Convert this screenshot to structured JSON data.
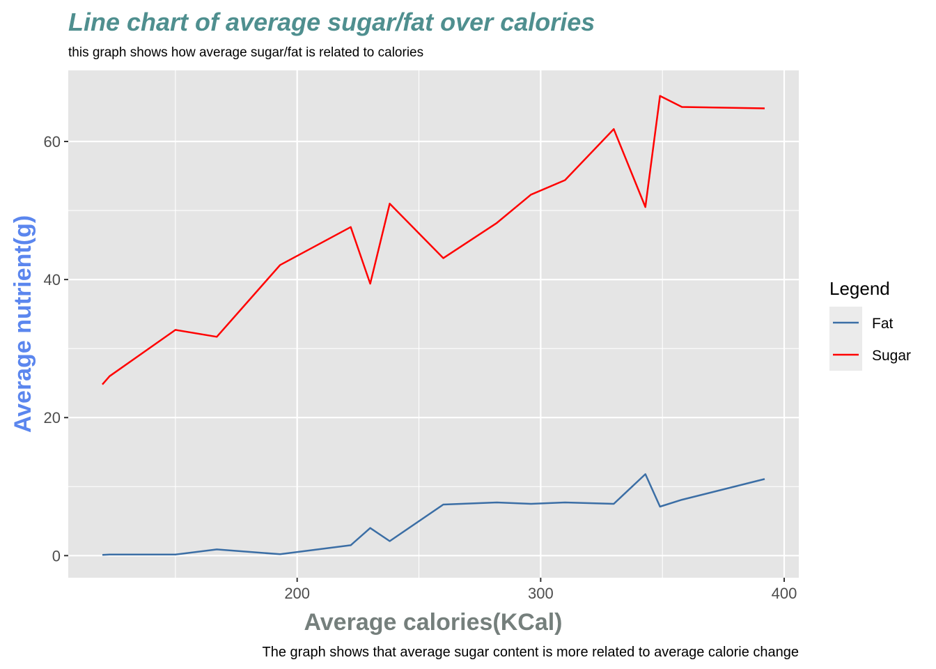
{
  "colors": {
    "title": "#4f8f8f",
    "xlabel": "#757f7c",
    "ylabel": "#5b86ee",
    "panel": "#e5e5e5",
    "grid": "#ffffff",
    "legend_key_bg": "#ebebeb"
  },
  "chart_data": {
    "type": "line",
    "title": "Line chart of average sugar/fat over calories",
    "subtitle": "this graph shows how average sugar/fat is related to calories",
    "caption": "The graph shows that average sugar content is more related to average calorie change",
    "xlabel": "Average calories(KCal)",
    "ylabel": "Average nutrient(g)",
    "xlim": [
      106,
      406
    ],
    "ylim": [
      -3.2,
      70.3
    ],
    "x_ticks": [
      200,
      300,
      400
    ],
    "x_minor_ticks": [
      150,
      250,
      350
    ],
    "y_ticks": [
      0,
      20,
      40,
      60
    ],
    "y_minor_ticks": [
      10,
      30,
      50
    ],
    "grid": true,
    "legend": {
      "title": "Legend",
      "placement": "right"
    },
    "series": [
      {
        "name": "Fat",
        "color": "#3b6ea5",
        "x": [
          120,
          123,
          150,
          167,
          193,
          222,
          230,
          238,
          260,
          282,
          296,
          310,
          330,
          343,
          349,
          358,
          392
        ],
        "y": [
          0.1,
          0.15,
          0.15,
          0.9,
          0.2,
          1.5,
          4.0,
          2.1,
          7.4,
          7.7,
          7.5,
          7.7,
          7.5,
          11.8,
          7.1,
          8.1,
          11.1
        ]
      },
      {
        "name": "Sugar",
        "color": "#ff0000",
        "x": [
          120,
          123,
          150,
          167,
          193,
          222,
          230,
          238,
          260,
          282,
          296,
          310,
          330,
          343,
          349,
          358,
          392
        ],
        "y": [
          24.8,
          26.0,
          32.7,
          31.7,
          42.1,
          47.6,
          39.4,
          51.0,
          43.1,
          48.2,
          52.3,
          54.4,
          61.8,
          50.5,
          66.6,
          65.0,
          64.8
        ]
      }
    ]
  }
}
